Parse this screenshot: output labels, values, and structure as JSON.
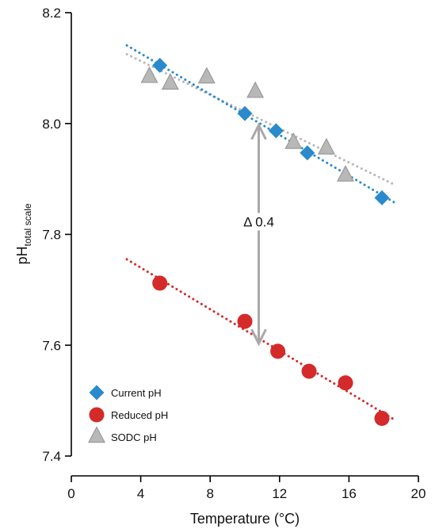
{
  "chart_data": {
    "type": "scatter",
    "xlabel": "Temperature (°C)",
    "ylabel": {
      "main": "pH",
      "sub": "total scale"
    },
    "xlim": [
      0,
      20
    ],
    "ylim": [
      7.4,
      8.2
    ],
    "xticks": [
      "0",
      "4",
      "8",
      "12",
      "16",
      "20"
    ],
    "yticks": [
      "7.4",
      "7.6",
      "7.8",
      "8.0",
      "8.2"
    ],
    "grid": false,
    "legend_position": "bottom-left",
    "series": [
      {
        "name": "Current pH",
        "marker": "diamond",
        "color": "#2a8acb",
        "x": [
          5.1,
          10.0,
          11.8,
          13.6,
          17.9
        ],
        "y": [
          8.105,
          8.018,
          7.987,
          7.947,
          7.866
        ],
        "trend": {
          "x": [
            3.2,
            18.6
          ],
          "y": [
            8.141,
            7.858
          ]
        }
      },
      {
        "name": "Reduced pH",
        "marker": "circle",
        "color": "#d42a2a",
        "x": [
          5.1,
          10.0,
          11.9,
          13.7,
          15.8,
          17.9
        ],
        "y": [
          7.712,
          7.643,
          7.589,
          7.553,
          7.532,
          7.468
        ],
        "trend": {
          "x": [
            3.2,
            18.6
          ],
          "y": [
            7.755,
            7.466
          ]
        }
      },
      {
        "name": "SODC pH",
        "marker": "triangle",
        "color": "#b8b8b8",
        "x": [
          4.5,
          5.7,
          7.8,
          10.6,
          12.8,
          14.7,
          15.8
        ],
        "y": [
          8.085,
          8.073,
          8.084,
          8.058,
          7.966,
          7.956,
          7.907
        ],
        "trend": {
          "x": [
            3.2,
            18.6
          ],
          "y": [
            8.125,
            7.89
          ]
        }
      }
    ],
    "annotation": {
      "text": "Δ 0.4",
      "x": 10.8,
      "y_top": 8.0,
      "y_bottom": 7.6,
      "color": "#a9a9a9"
    }
  }
}
